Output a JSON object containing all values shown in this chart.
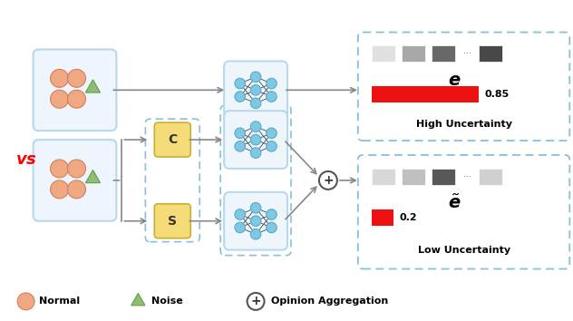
{
  "fig_width": 6.32,
  "fig_height": 3.54,
  "bg_color": "#ffffff",
  "orange_circle_color": "#F0A882",
  "orange_circle_edge": "#D08060",
  "green_triangle_color": "#90BC78",
  "green_triangle_edge": "#60A040",
  "blue_node_color": "#7EC8E3",
  "blue_node_edge": "#5AAAC8",
  "yellow_box_color": "#F5DC78",
  "yellow_box_edge": "#C8B030",
  "solid_box_color": "#B8D8EE",
  "dashed_box_color": "#88C0DC",
  "vs_color": "#FF0000",
  "arrow_color": "#888888",
  "red_bar_color": "#EE1111",
  "gray_shades_top": [
    "#E0E0E0",
    "#A8A8A8",
    "#686868",
    "#484848"
  ],
  "gray_shades_bot": [
    "#D8D8D8",
    "#C0C0C0",
    "#585858",
    "#D0D0D0"
  ],
  "dot_color": "#5599CC",
  "high_uncert_val": "0.85",
  "low_uncert_val": "0.2",
  "high_uncert_label": "High Uncertainty",
  "low_uncert_label": "Low Uncertainty",
  "normal_label": "Normal",
  "noise_label": "Noise",
  "opinion_label": "Opinion Aggregation"
}
